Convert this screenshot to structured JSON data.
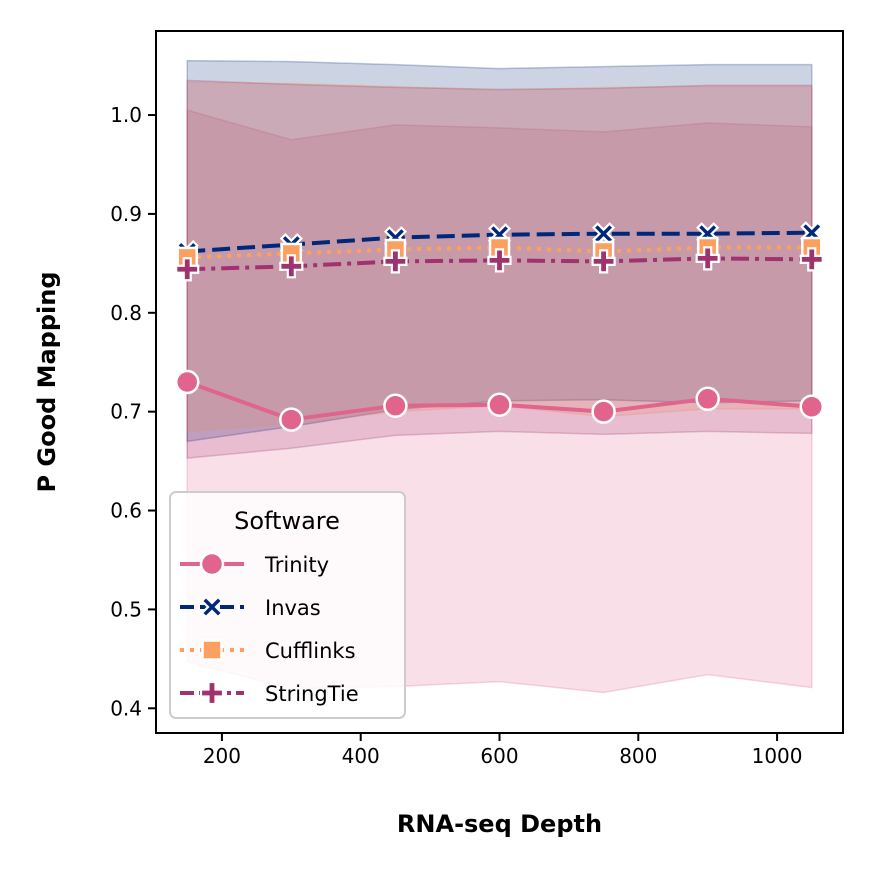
{
  "chart_data": {
    "type": "line",
    "xlabel": "RNA-seq Depth",
    "ylabel": "P Good Mapping",
    "xlim": [
      105,
      1095
    ],
    "ylim": [
      0.375,
      1.085
    ],
    "xticks": [
      200,
      400,
      600,
      800,
      1000
    ],
    "xtick_labels": [
      "200",
      "400",
      "600",
      "800",
      "1000"
    ],
    "yticks": [
      0.4,
      0.5,
      0.6,
      0.7,
      0.8,
      0.9,
      1.0
    ],
    "ytick_labels": [
      "0.4",
      "0.5",
      "0.6",
      "0.7",
      "0.8",
      "0.9",
      "1.0"
    ],
    "grid": false,
    "legend_title": "Software",
    "legend_position": "lower-left",
    "x": [
      150,
      300,
      450,
      600,
      750,
      900,
      1050
    ],
    "series": [
      {
        "name": "Trinity",
        "color": "#e0648c",
        "marker": "circle",
        "dash": "solid",
        "values": [
          0.73,
          0.692,
          0.706,
          0.707,
          0.7,
          0.713,
          0.705
        ],
        "band_lower": [
          0.447,
          0.42,
          0.422,
          0.427,
          0.416,
          0.434,
          0.421
        ],
        "band_upper": [
          1.005,
          0.975,
          0.99,
          0.987,
          0.983,
          0.992,
          0.988
        ]
      },
      {
        "name": "Invas",
        "color": "#00287a",
        "marker": "x",
        "dash": "dashed",
        "values": [
          0.862,
          0.869,
          0.876,
          0.879,
          0.88,
          0.88,
          0.881
        ],
        "band_lower": [
          0.67,
          0.685,
          0.702,
          0.711,
          0.712,
          0.709,
          0.711
        ],
        "band_upper": [
          1.055,
          1.054,
          1.051,
          1.047,
          1.049,
          1.051,
          1.051
        ]
      },
      {
        "name": "Cufflinks",
        "color": "#fca060",
        "marker": "square",
        "dash": "dotted",
        "values": [
          0.856,
          0.86,
          0.864,
          0.866,
          0.862,
          0.866,
          0.866
        ],
        "band_lower": [
          0.68,
          0.688,
          0.7,
          0.706,
          0.695,
          0.703,
          0.703
        ],
        "band_upper": [
          1.033,
          1.032,
          1.029,
          1.025,
          1.028,
          1.029,
          1.029
        ]
      },
      {
        "name": "StringTie",
        "color": "#a0326e",
        "marker": "plus",
        "dash": "dashdot",
        "values": [
          0.844,
          0.847,
          0.852,
          0.853,
          0.852,
          0.855,
          0.854
        ],
        "band_lower": [
          0.653,
          0.663,
          0.676,
          0.68,
          0.677,
          0.68,
          0.678
        ],
        "band_upper": [
          1.035,
          1.031,
          1.028,
          1.026,
          1.027,
          1.03,
          1.03
        ]
      }
    ]
  }
}
